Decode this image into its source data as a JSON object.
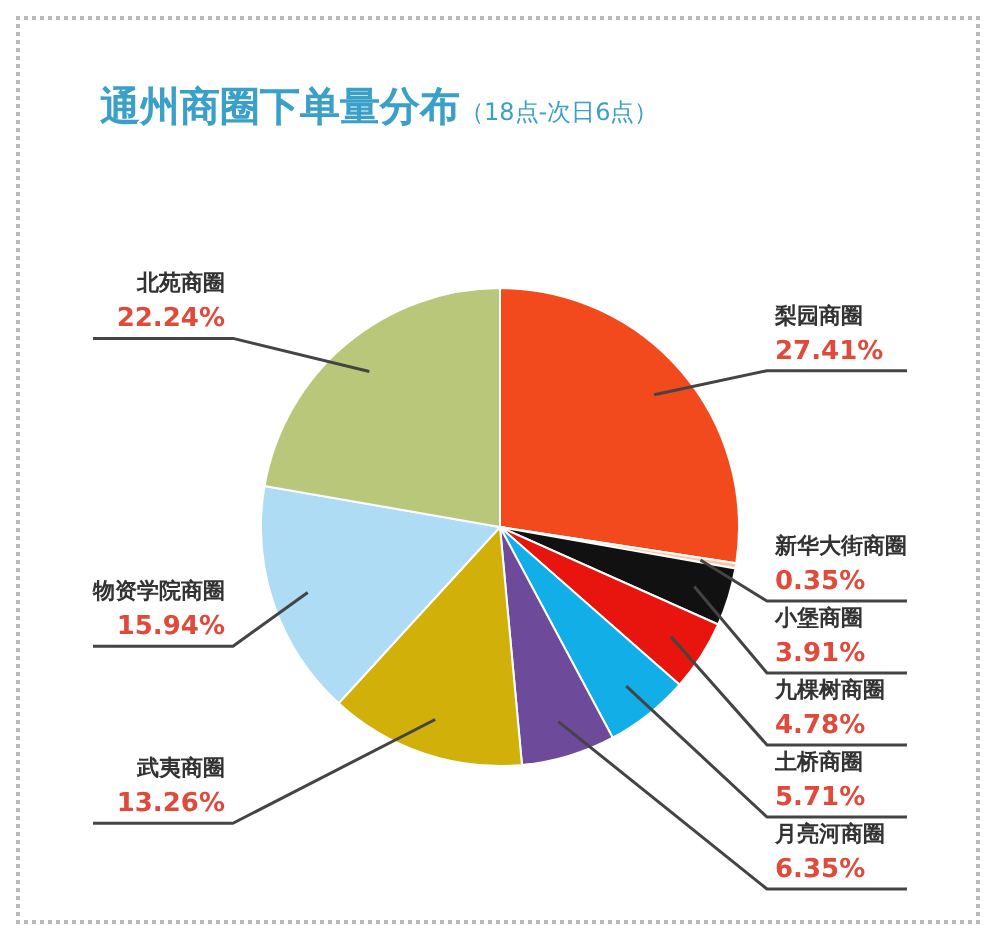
{
  "chart_data": {
    "type": "pie",
    "title": "通州商圈下单量分布",
    "subtitle": "（18点-次日6点）",
    "categories": [
      "梨园商圈",
      "新华大街商圈",
      "小堡商圈",
      "九棵树商圈",
      "土桥商圈",
      "月亮河商圈",
      "武夷商圈",
      "物资学院商圈",
      "北苑商圈"
    ],
    "values": [
      27.41,
      0.35,
      3.91,
      4.78,
      5.71,
      6.35,
      13.26,
      15.94,
      22.24
    ],
    "value_labels": [
      "27.41%",
      "0.35%",
      "3.91%",
      "4.78%",
      "5.71%",
      "6.35%",
      "13.26%",
      "15.94%",
      "22.24%"
    ],
    "colors": [
      "#f24a1c",
      "#f8c9a8",
      "#111111",
      "#e8150e",
      "#11aee8",
      "#6e4a9a",
      "#d2b00a",
      "#aedcf5",
      "#b9c77a"
    ],
    "legend": false
  }
}
